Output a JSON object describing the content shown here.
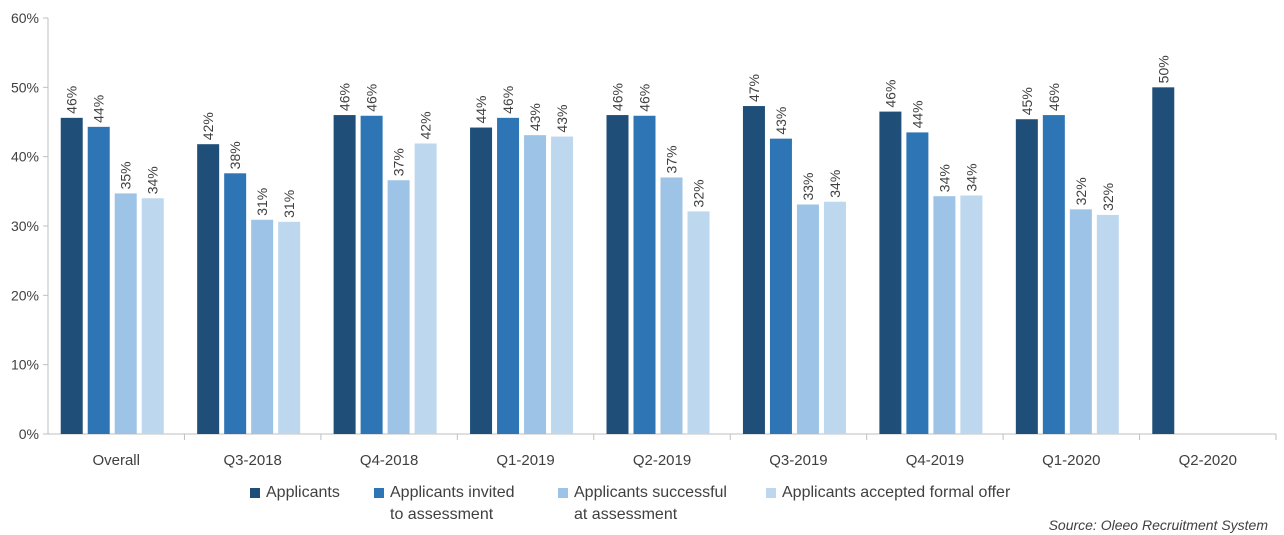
{
  "chart_data": {
    "type": "bar",
    "categories": [
      "Overall",
      "Q3-2018",
      "Q4-2018",
      "Q1-2019",
      "Q2-2019",
      "Q3-2019",
      "Q4-2019",
      "Q1-2020",
      "Q2-2020"
    ],
    "series": [
      {
        "name": "Applicants",
        "color": "#1f4e79",
        "values": [
          45.6,
          41.8,
          46.0,
          44.2,
          46.0,
          47.3,
          46.5,
          45.4,
          50.0
        ],
        "labels": [
          "46%",
          "42%",
          "46%",
          "44%",
          "46%",
          "47%",
          "46%",
          "45%",
          "50%"
        ]
      },
      {
        "name": "Applicants invited to assessment",
        "color": "#2e75b6",
        "values": [
          44.3,
          37.6,
          45.9,
          45.6,
          45.9,
          42.6,
          43.5,
          46.0,
          null
        ],
        "labels": [
          "44%",
          "38%",
          "46%",
          "46%",
          "46%",
          "43%",
          "44%",
          "46%",
          ""
        ]
      },
      {
        "name": "Applicants successful at assessment",
        "color": "#9dc3e6",
        "values": [
          34.7,
          30.9,
          36.6,
          43.1,
          37.0,
          33.1,
          34.3,
          32.4,
          null
        ],
        "labels": [
          "35%",
          "31%",
          "37%",
          "43%",
          "37%",
          "33%",
          "34%",
          "32%",
          ""
        ]
      },
      {
        "name": "Applicants accepted formal offer",
        "color": "#bdd7ee",
        "values": [
          34.0,
          30.6,
          41.9,
          42.9,
          32.1,
          33.5,
          34.4,
          31.6,
          null
        ],
        "labels": [
          "34%",
          "31%",
          "42%",
          "43%",
          "32%",
          "34%",
          "34%",
          "32%",
          ""
        ]
      }
    ],
    "y_tick_labels": [
      "0%",
      "10%",
      "20%",
      "30%",
      "40%",
      "50%",
      "60%"
    ],
    "ylim": [
      0,
      60
    ],
    "y_step": 10,
    "legend_position": "bottom",
    "legend_items": [
      {
        "line1": "Applicants",
        "line2": ""
      },
      {
        "line1": "Applicants invited",
        "line2": "to assessment"
      },
      {
        "line1": "Applicants successful",
        "line2": "at assessment"
      },
      {
        "line1": "Applicants accepted formal offer",
        "line2": ""
      }
    ]
  },
  "source_note": "Source: Oleeo Recruitment System"
}
